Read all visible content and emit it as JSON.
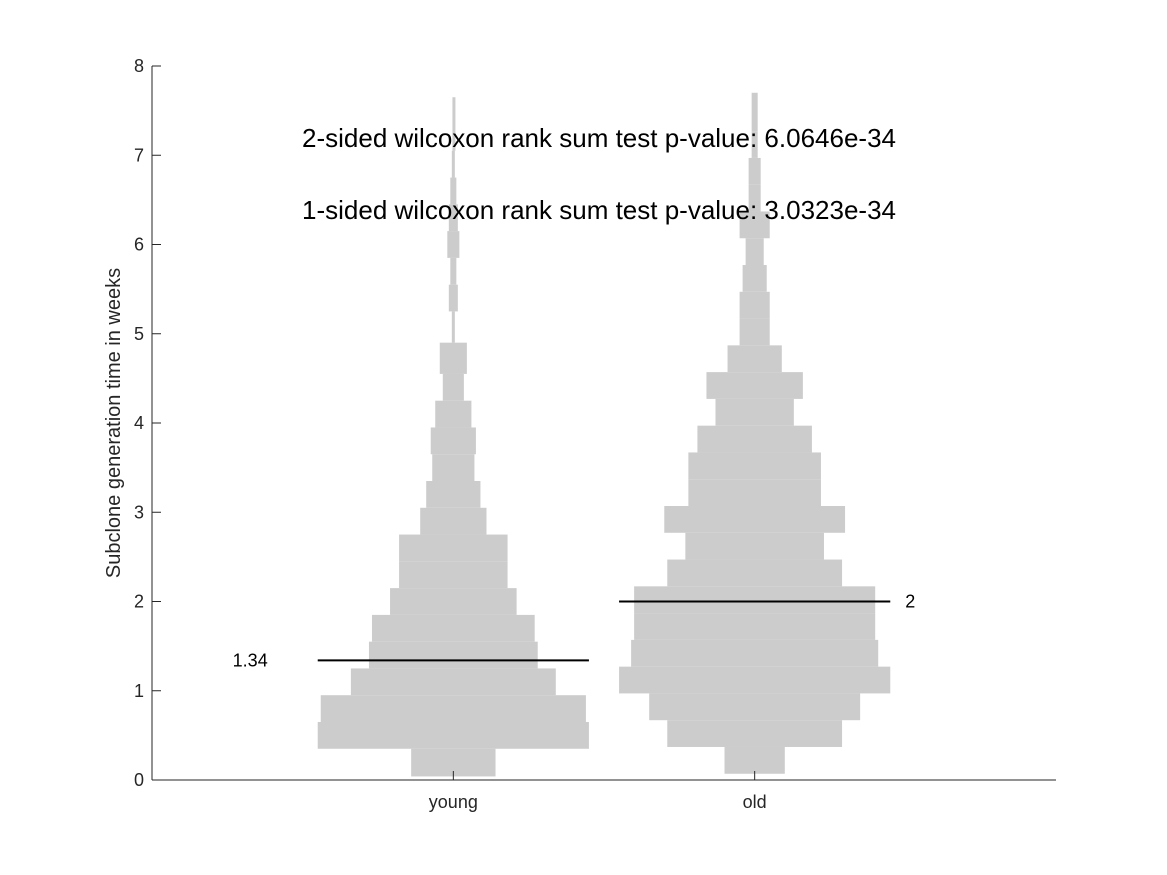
{
  "chart_data": {
    "type": "violin-histogram",
    "categories": [
      "young",
      "old"
    ],
    "ylabel": "Subclone generation time in weeks",
    "ylim": [
      0,
      8
    ],
    "yticks": [
      0,
      1,
      2,
      3,
      4,
      5,
      6,
      7,
      8
    ],
    "xlim": [
      0,
      3
    ],
    "bin_width_weeks": 0.3,
    "fill_color": "#cccccc",
    "median_color": "#000000",
    "annotations": [
      "2-sided wilcoxon rank sum test p-value:  6.0646e-34",
      "1-sided wilcoxon rank sum test p-value:  3.0323e-34"
    ],
    "series": [
      {
        "category": "young",
        "x": 1,
        "median": 1.34,
        "median_label": "1.34",
        "bins": [
          {
            "y0": 0.04,
            "y1": 0.35,
            "halfwidth": 0.14
          },
          {
            "y0": 0.35,
            "y1": 0.65,
            "halfwidth": 0.45
          },
          {
            "y0": 0.65,
            "y1": 0.95,
            "halfwidth": 0.44
          },
          {
            "y0": 0.95,
            "y1": 1.25,
            "halfwidth": 0.34
          },
          {
            "y0": 1.25,
            "y1": 1.55,
            "halfwidth": 0.28
          },
          {
            "y0": 1.55,
            "y1": 1.85,
            "halfwidth": 0.27
          },
          {
            "y0": 1.85,
            "y1": 2.15,
            "halfwidth": 0.21
          },
          {
            "y0": 2.15,
            "y1": 2.45,
            "halfwidth": 0.18
          },
          {
            "y0": 2.45,
            "y1": 2.75,
            "halfwidth": 0.18
          },
          {
            "y0": 2.75,
            "y1": 3.05,
            "halfwidth": 0.11
          },
          {
            "y0": 3.05,
            "y1": 3.35,
            "halfwidth": 0.09
          },
          {
            "y0": 3.35,
            "y1": 3.65,
            "halfwidth": 0.07
          },
          {
            "y0": 3.65,
            "y1": 3.95,
            "halfwidth": 0.075
          },
          {
            "y0": 3.95,
            "y1": 4.25,
            "halfwidth": 0.06
          },
          {
            "y0": 4.25,
            "y1": 4.55,
            "halfwidth": 0.035
          },
          {
            "y0": 4.55,
            "y1": 4.85,
            "halfwidth": 0.03
          },
          {
            "y0": 4.55,
            "y1": 4.9,
            "halfwidth": 0.045
          },
          {
            "y0": 4.9,
            "y1": 5.25,
            "halfwidth": 0.005
          },
          {
            "y0": 5.25,
            "y1": 5.55,
            "halfwidth": 0.015
          },
          {
            "y0": 5.55,
            "y1": 5.85,
            "halfwidth": 0.01
          },
          {
            "y0": 5.85,
            "y1": 6.15,
            "halfwidth": 0.02
          },
          {
            "y0": 6.15,
            "y1": 6.45,
            "halfwidth": 0.015
          },
          {
            "y0": 6.45,
            "y1": 6.75,
            "halfwidth": 0.01
          },
          {
            "y0": 6.75,
            "y1": 7.05,
            "halfwidth": 0.005
          },
          {
            "y0": 7.05,
            "y1": 7.65,
            "halfwidth": 0.003
          }
        ]
      },
      {
        "category": "old",
        "x": 2,
        "median": 2,
        "median_label": "2",
        "bins": [
          {
            "y0": 0.07,
            "y1": 0.37,
            "halfwidth": 0.1
          },
          {
            "y0": 0.37,
            "y1": 0.67,
            "halfwidth": 0.29
          },
          {
            "y0": 0.67,
            "y1": 0.97,
            "halfwidth": 0.35
          },
          {
            "y0": 0.97,
            "y1": 1.27,
            "halfwidth": 0.45
          },
          {
            "y0": 1.27,
            "y1": 1.57,
            "halfwidth": 0.41
          },
          {
            "y0": 1.57,
            "y1": 1.87,
            "halfwidth": 0.4
          },
          {
            "y0": 1.87,
            "y1": 2.17,
            "halfwidth": 0.4
          },
          {
            "y0": 2.17,
            "y1": 2.47,
            "halfwidth": 0.29
          },
          {
            "y0": 2.47,
            "y1": 2.77,
            "halfwidth": 0.23
          },
          {
            "y0": 2.77,
            "y1": 3.07,
            "halfwidth": 0.3
          },
          {
            "y0": 3.07,
            "y1": 3.37,
            "halfwidth": 0.22
          },
          {
            "y0": 3.37,
            "y1": 3.67,
            "halfwidth": 0.22
          },
          {
            "y0": 3.67,
            "y1": 3.97,
            "halfwidth": 0.19
          },
          {
            "y0": 3.97,
            "y1": 4.27,
            "halfwidth": 0.13
          },
          {
            "y0": 4.27,
            "y1": 4.57,
            "halfwidth": 0.16
          },
          {
            "y0": 4.57,
            "y1": 4.87,
            "halfwidth": 0.09
          },
          {
            "y0": 4.87,
            "y1": 5.17,
            "halfwidth": 0.05
          },
          {
            "y0": 5.17,
            "y1": 5.47,
            "halfwidth": 0.05
          },
          {
            "y0": 5.47,
            "y1": 5.77,
            "halfwidth": 0.04
          },
          {
            "y0": 5.77,
            "y1": 6.07,
            "halfwidth": 0.03
          },
          {
            "y0": 6.07,
            "y1": 6.37,
            "halfwidth": 0.05
          },
          {
            "y0": 6.37,
            "y1": 6.67,
            "halfwidth": 0.02
          },
          {
            "y0": 6.67,
            "y1": 6.97,
            "halfwidth": 0.02
          },
          {
            "y0": 6.97,
            "y1": 7.27,
            "halfwidth": 0.01
          },
          {
            "y0": 7.27,
            "y1": 7.7,
            "halfwidth": 0.01
          }
        ]
      }
    ]
  }
}
